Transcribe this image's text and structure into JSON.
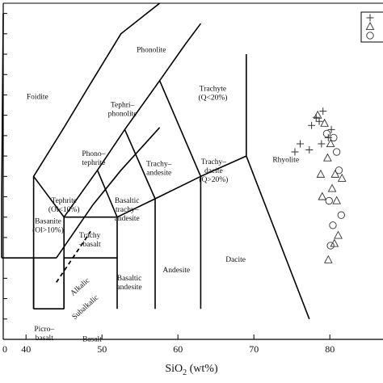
{
  "chart_data": {
    "type": "scatter",
    "xlabel": "SiO",
    "xlabel_sub": "2",
    "xlabel_unit": "(wt%)",
    "ylabel": "",
    "xlim": [
      37,
      87
    ],
    "ylim": [
      -1,
      15.5
    ],
    "xticks": [
      40,
      50,
      60,
      70,
      80
    ],
    "xtick_labels": [
      "40",
      "50",
      "60",
      "70",
      "80"
    ],
    "grid": false,
    "legend_position": "top-right",
    "fields": [
      {
        "name": "Foidite",
        "lines": [
          "Foidite"
        ],
        "label_at": [
          41.5,
          10.8
        ]
      },
      {
        "name": "Phonolite",
        "lines": [
          "Phonolite"
        ],
        "label_at": [
          56.5,
          13.1
        ]
      },
      {
        "name": "Tephriphonolite",
        "lines": [
          "Tephri–",
          "phonolite"
        ],
        "label_at": [
          52.7,
          10.4
        ]
      },
      {
        "name": "Trachyte",
        "lines": [
          "Trachyte",
          "(Q<20%)"
        ],
        "label_at": [
          64.6,
          11.2
        ]
      },
      {
        "name": "Phonotephrite",
        "lines": [
          "Phono–",
          "tephrite"
        ],
        "label_at": [
          48.9,
          8.0
        ]
      },
      {
        "name": "Trachyandesite",
        "lines": [
          "Trachy–",
          "andesite"
        ],
        "label_at": [
          57.5,
          7.5
        ]
      },
      {
        "name": "Trachydacite",
        "lines": [
          "Trachy–",
          "dacite",
          "(Q>20%)"
        ],
        "label_at": [
          64.7,
          7.6
        ]
      },
      {
        "name": "Rhyolite",
        "lines": [
          "Rhyolite"
        ],
        "label_at": [
          74.2,
          7.7
        ]
      },
      {
        "name": "Tephrite",
        "lines": [
          "Tephrite",
          "(Ol<10%)"
        ],
        "label_at": [
          45.0,
          5.7
        ]
      },
      {
        "name": "Basanite",
        "lines": [
          "Basanite",
          "(Ol>10%)"
        ],
        "label_at": [
          42.9,
          4.7
        ]
      },
      {
        "name": "Basaltic trachyandesite",
        "lines": [
          "Basaltic",
          "trachy–",
          "andesite"
        ],
        "label_at": [
          53.3,
          5.7
        ]
      },
      {
        "name": "Trachybasalt",
        "lines": [
          "Trachy",
          "–basalt"
        ],
        "label_at": [
          48.4,
          4.0
        ]
      },
      {
        "name": "Andesite",
        "lines": [
          "Andesite"
        ],
        "label_at": [
          59.8,
          2.3
        ]
      },
      {
        "name": "Dacite",
        "lines": [
          "Dacite"
        ],
        "label_at": [
          67.6,
          2.8
        ]
      },
      {
        "name": "Basaltic andesite",
        "lines": [
          "Basaltic",
          "andesite"
        ],
        "label_at": [
          53.6,
          1.9
        ]
      },
      {
        "name": "Picrobasalt",
        "lines": [
          "Picro–",
          "basalt"
        ],
        "label_at": [
          42.4,
          -0.6
        ]
      },
      {
        "name": "Basalt",
        "lines": [
          "Basalt"
        ],
        "label_at": [
          48.7,
          -1.1
        ]
      }
    ],
    "boundary_annotations": [
      {
        "text": "Alkalic",
        "at": [
          47.3,
          1.5
        ],
        "rotate": -42
      },
      {
        "text": "Subalkalic",
        "at": [
          48.0,
          0.5
        ],
        "rotate": -42
      }
    ],
    "boundaries": [
      [
        [
          41,
          0.5
        ],
        [
          41,
          7
        ],
        [
          45,
          9.4
        ],
        [
          48.4,
          11.5
        ],
        [
          52.5,
          14
        ],
        [
          57.6,
          15.5
        ]
      ],
      [
        [
          41,
          7
        ],
        [
          45,
          5
        ],
        [
          45,
          0.5
        ]
      ],
      [
        [
          45,
          5
        ],
        [
          49.4,
          7.3
        ],
        [
          53,
          9.3
        ],
        [
          57.6,
          11.7
        ],
        [
          61,
          13.5
        ],
        [
          63,
          14.5
        ]
      ],
      [
        [
          45,
          5
        ],
        [
          52,
          5
        ]
      ],
      [
        [
          52,
          5
        ],
        [
          57,
          5.9
        ],
        [
          63,
          7
        ],
        [
          69,
          8
        ]
      ],
      [
        [
          49.4,
          7.3
        ],
        [
          52,
          5
        ]
      ],
      [
        [
          53,
          9.3
        ],
        [
          57,
          5.9
        ]
      ],
      [
        [
          57.6,
          11.7
        ],
        [
          63,
          7
        ]
      ],
      [
        [
          45,
          0.5
        ],
        [
          45,
          3
        ],
        [
          52,
          3
        ]
      ],
      [
        [
          52,
          0.5
        ],
        [
          52,
          5
        ]
      ],
      [
        [
          57,
          0.5
        ],
        [
          57,
          5.9
        ]
      ],
      [
        [
          63,
          0.5
        ],
        [
          63,
          7
        ]
      ],
      [
        [
          69,
          8
        ],
        [
          69,
          13
        ]
      ],
      [
        [
          69,
          8
        ],
        [
          77.3,
          0
        ]
      ],
      [
        [
          44,
          3
        ],
        [
          48.8,
          5.6
        ],
        [
          52.5,
          7.3
        ],
        [
          57.6,
          9.4
        ]
      ],
      [
        [
          41,
          0.5
        ],
        [
          45,
          0.5
        ]
      ],
      [
        [
          41,
          0.5
        ],
        [
          41,
          3
        ]
      ],
      [
        [
          36.8,
          3
        ],
        [
          36.8,
          6
        ],
        [
          37,
          15
        ]
      ],
      [
        [
          36.8,
          3
        ],
        [
          44,
          3
        ]
      ]
    ],
    "dividing_line": [
      [
        44.0,
        1.8
      ],
      [
        48.5,
        4.3
      ]
    ],
    "series": [
      {
        "marker": "plus",
        "points": [
          [
            78.2,
            9.9
          ],
          [
            79.1,
            10.2
          ],
          [
            78.6,
            9.7
          ],
          [
            77.6,
            9.5
          ],
          [
            76.1,
            8.6
          ],
          [
            77.3,
            8.3
          ],
          [
            80.2,
            9.3
          ],
          [
            79.8,
            8.9
          ],
          [
            78.9,
            8.6
          ],
          [
            75.4,
            8.2
          ]
        ]
      },
      {
        "marker": "triangle",
        "points": [
          [
            78.4,
            10.0
          ],
          [
            79.3,
            9.6
          ],
          [
            80.1,
            8.6
          ],
          [
            78.8,
            7.1
          ],
          [
            79.7,
            7.9
          ],
          [
            80.3,
            6.4
          ],
          [
            80.9,
            5.8
          ],
          [
            81.1,
            4.1
          ],
          [
            79.8,
            2.9
          ],
          [
            80.6,
            3.7
          ],
          [
            81.6,
            6.9
          ],
          [
            79.0,
            6.0
          ],
          [
            80.7,
            7.1
          ]
        ]
      },
      {
        "marker": "circle",
        "points": [
          [
            79.6,
            9.1
          ],
          [
            80.5,
            8.9
          ],
          [
            81.2,
            7.3
          ],
          [
            79.9,
            5.8
          ],
          [
            80.4,
            4.6
          ],
          [
            81.5,
            5.1
          ],
          [
            80.1,
            3.6
          ],
          [
            80.9,
            8.2
          ]
        ]
      }
    ]
  }
}
